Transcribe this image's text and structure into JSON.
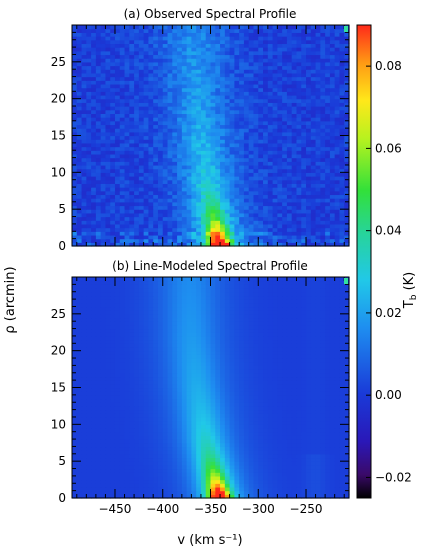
{
  "chart_data": [
    {
      "type": "heatmap",
      "title": "(a) Observed Spectral Profile",
      "xlabel": "",
      "ylabel": "",
      "xlim": [
        -495,
        -205
      ],
      "ylim": [
        0,
        30
      ],
      "xticks": [
        -450,
        -400,
        -350,
        -300,
        -250
      ],
      "yticks": [
        0,
        5,
        10,
        15,
        20,
        25
      ],
      "ytick_labels": [
        "0",
        "5",
        "10",
        "15",
        "20",
        "25"
      ],
      "show_xtick_labels": false,
      "peak": {
        "velocity": -340,
        "rho": 0,
        "value": 0.09
      },
      "ridge": [
        {
          "rho": 0,
          "velocity": -340
        },
        {
          "rho": 8,
          "velocity": -352
        },
        {
          "rho": 16,
          "velocity": -360
        },
        {
          "rho": 22,
          "velocity": -365
        },
        {
          "rho": 29,
          "velocity": -368
        }
      ],
      "noise": true
    },
    {
      "type": "heatmap",
      "title": "(b) Line-Modeled Spectral Profile",
      "xlabel": "v (km s⁻¹)",
      "ylabel": "ρ (arcmin)",
      "xlim": [
        -495,
        -205
      ],
      "ylim": [
        0,
        30
      ],
      "xticks": [
        -450,
        -400,
        -350,
        -300,
        -250
      ],
      "xtick_labels": [
        "−450",
        "−400",
        "−350",
        "−300",
        "−250"
      ],
      "yticks": [
        0,
        5,
        10,
        15,
        20,
        25
      ],
      "ytick_labels": [
        "0",
        "5",
        "10",
        "15",
        "20",
        "25"
      ],
      "show_xtick_labels": true,
      "peak": {
        "velocity": -340,
        "rho": 0,
        "value": 0.09
      },
      "ridge": [
        {
          "rho": 0,
          "velocity": -340
        },
        {
          "rho": 8,
          "velocity": -355
        },
        {
          "rho": 16,
          "velocity": -365
        },
        {
          "rho": 22,
          "velocity": -370
        },
        {
          "rho": 29,
          "velocity": -372
        }
      ],
      "noise": false
    }
  ],
  "colorbar": {
    "label": "T_b (K)",
    "label_main": "T",
    "label_sub": "b",
    "label_unit": " (K)",
    "min": -0.025,
    "max": 0.09,
    "ticks": [
      -0.02,
      0.0,
      0.02,
      0.04,
      0.06,
      0.08
    ],
    "tick_labels": [
      "−0.02",
      "0.00",
      "0.02",
      "0.04",
      "0.06",
      "0.08"
    ]
  },
  "colors": {
    "colormap": [
      "#000000",
      "#3a0a6a",
      "#2a18b8",
      "#1a3ad8",
      "#1e8ef0",
      "#21c8e8",
      "#27d49a",
      "#32e03a",
      "#b7f21f",
      "#ffe81a",
      "#ff9a14",
      "#ff2a1a"
    ]
  }
}
